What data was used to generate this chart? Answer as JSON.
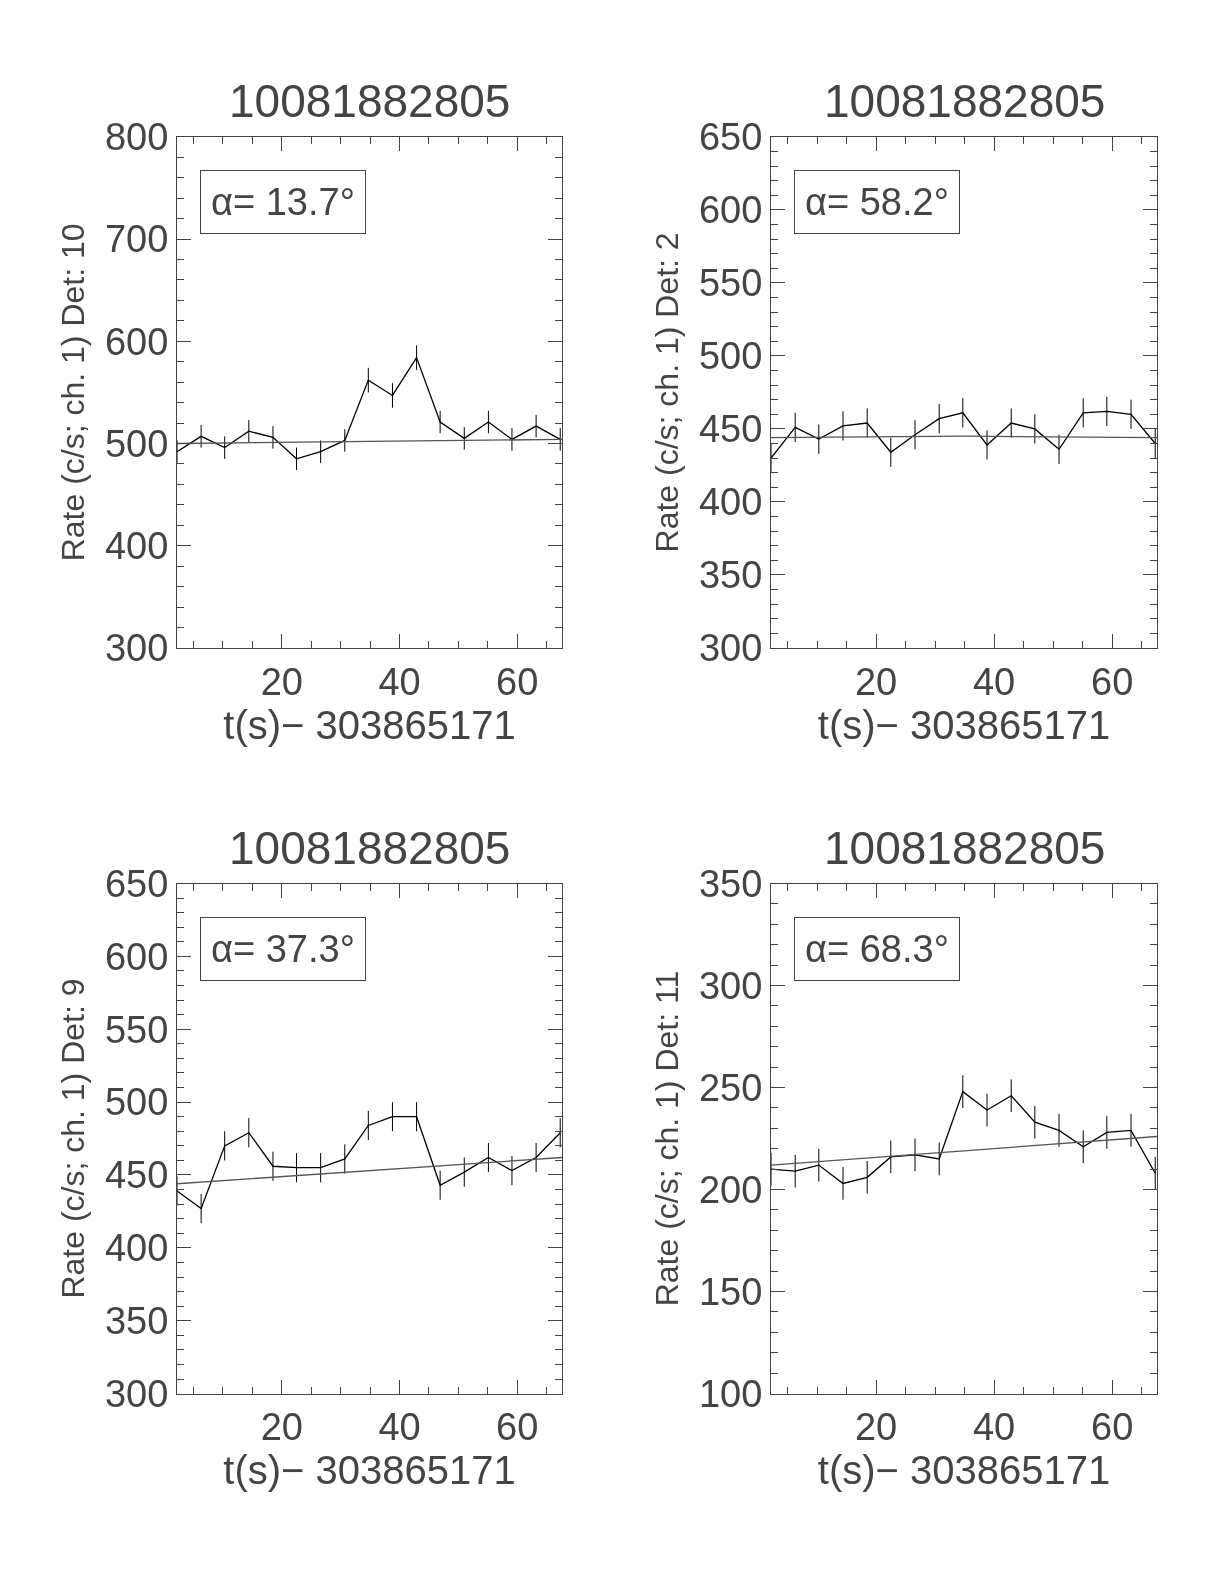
{
  "chart_data": [
    {
      "type": "line",
      "title": "10081882805",
      "xlabel": "t(s)− 303865171",
      "ylabel": "Rate (c/s; ch. 1) Det: 10",
      "annotations": [
        "α= 13.7°"
      ],
      "xlim": [
        2.2,
        67.6
      ],
      "xticks": [
        20,
        40,
        60,
        {
          "value": 5,
          "label": null
        },
        {
          "value": 10,
          "label": null
        },
        {
          "value": 15,
          "label": null
        },
        {
          "value": 25,
          "label": null
        },
        {
          "value": 30,
          "label": null
        },
        {
          "value": 35,
          "label": null
        },
        {
          "value": 45,
          "label": null
        },
        {
          "value": 50,
          "label": null
        },
        {
          "value": 55,
          "label": null
        },
        {
          "value": 65,
          "label": null
        }
      ],
      "ylim": [
        300,
        800
      ],
      "yticks": [
        300,
        400,
        500,
        600,
        700,
        800,
        {
          "value": 320,
          "label": null
        },
        {
          "value": 340,
          "label": null
        },
        {
          "value": 360,
          "label": null
        },
        {
          "value": 380,
          "label": null
        },
        {
          "value": 420,
          "label": null
        },
        {
          "value": 440,
          "label": null
        },
        {
          "value": 460,
          "label": null
        },
        {
          "value": 480,
          "label": null
        },
        {
          "value": 520,
          "label": null
        },
        {
          "value": 540,
          "label": null
        },
        {
          "value": 560,
          "label": null
        },
        {
          "value": 580,
          "label": null
        },
        {
          "value": 620,
          "label": null
        },
        {
          "value": 640,
          "label": null
        },
        {
          "value": 660,
          "label": null
        },
        {
          "value": 680,
          "label": null
        },
        {
          "value": 720,
          "label": null
        },
        {
          "value": 740,
          "label": null
        },
        {
          "value": 760,
          "label": null
        },
        {
          "value": 780,
          "label": null
        }
      ],
      "series": [
        {
          "color": "#000000",
          "x": [
            2.2,
            6.3,
            10.3,
            14.4,
            18.5,
            22.5,
            26.6,
            30.7,
            34.7,
            38.8,
            42.9,
            46.9,
            51.0,
            55.1,
            59.1,
            63.2,
            67.3
          ],
          "values": [
            492,
            507,
            496,
            512,
            506,
            485,
            492,
            503,
            562,
            547,
            584,
            521,
            505,
            521,
            504,
            517,
            504
          ],
          "errors": [
            11,
            11,
            11,
            11,
            11,
            11,
            11,
            11,
            12,
            12,
            12,
            11,
            11,
            11,
            11,
            11,
            11
          ]
        },
        {
          "color": "#555555",
          "x": [
            2.2,
            67.6
          ],
          "values": [
            500,
            504
          ]
        }
      ]
    },
    {
      "type": "line",
      "title": "10081882805",
      "xlabel": "t(s)− 303865171",
      "ylabel": "Rate (c/s; ch. 1) Det: 2",
      "annotations": [
        "α= 58.2°"
      ],
      "xlim": [
        2.2,
        67.6
      ],
      "xticks": [
        20,
        40,
        60,
        {
          "value": 5,
          "label": null
        },
        {
          "value": 10,
          "label": null
        },
        {
          "value": 15,
          "label": null
        },
        {
          "value": 25,
          "label": null
        },
        {
          "value": 30,
          "label": null
        },
        {
          "value": 35,
          "label": null
        },
        {
          "value": 45,
          "label": null
        },
        {
          "value": 50,
          "label": null
        },
        {
          "value": 55,
          "label": null
        },
        {
          "value": 65,
          "label": null
        }
      ],
      "ylim": [
        300,
        650
      ],
      "yticks": [
        300,
        350,
        400,
        450,
        500,
        550,
        600,
        650,
        {
          "value": 310,
          "label": null
        },
        {
          "value": 320,
          "label": null
        },
        {
          "value": 330,
          "label": null
        },
        {
          "value": 340,
          "label": null
        },
        {
          "value": 360,
          "label": null
        },
        {
          "value": 370,
          "label": null
        },
        {
          "value": 380,
          "label": null
        },
        {
          "value": 390,
          "label": null
        },
        {
          "value": 410,
          "label": null
        },
        {
          "value": 420,
          "label": null
        },
        {
          "value": 430,
          "label": null
        },
        {
          "value": 440,
          "label": null
        },
        {
          "value": 460,
          "label": null
        },
        {
          "value": 470,
          "label": null
        },
        {
          "value": 480,
          "label": null
        },
        {
          "value": 490,
          "label": null
        },
        {
          "value": 510,
          "label": null
        },
        {
          "value": 520,
          "label": null
        },
        {
          "value": 530,
          "label": null
        },
        {
          "value": 540,
          "label": null
        },
        {
          "value": 560,
          "label": null
        },
        {
          "value": 570,
          "label": null
        },
        {
          "value": 580,
          "label": null
        },
        {
          "value": 590,
          "label": null
        },
        {
          "value": 610,
          "label": null
        },
        {
          "value": 620,
          "label": null
        },
        {
          "value": 630,
          "label": null
        },
        {
          "value": 640,
          "label": null
        }
      ],
      "series": [
        {
          "color": "#000000",
          "x": [
            2.2,
            6.3,
            10.3,
            14.4,
            18.5,
            22.5,
            26.6,
            30.7,
            34.7,
            38.8,
            42.9,
            46.9,
            51.0,
            55.1,
            59.1,
            63.2,
            67.3
          ],
          "values": [
            430,
            451,
            443,
            452,
            454,
            434,
            446,
            457,
            461,
            439,
            454,
            450,
            436,
            461,
            462,
            460,
            440
          ],
          "errors": [
            10,
            10,
            10,
            10,
            10,
            10,
            10,
            10,
            10,
            10,
            10,
            10,
            10,
            10,
            10,
            10,
            10
          ]
        },
        {
          "color": "#555555",
          "x": [
            2.2,
            35,
            67.6
          ],
          "values": [
            444,
            445,
            444
          ]
        }
      ]
    },
    {
      "type": "line",
      "title": "10081882805",
      "xlabel": "t(s)− 303865171",
      "ylabel": "Rate (c/s; ch. 1) Det: 9",
      "annotations": [
        "α= 37.3°"
      ],
      "xlim": [
        2.2,
        67.6
      ],
      "xticks": [
        20,
        40,
        60,
        {
          "value": 5,
          "label": null
        },
        {
          "value": 10,
          "label": null
        },
        {
          "value": 15,
          "label": null
        },
        {
          "value": 25,
          "label": null
        },
        {
          "value": 30,
          "label": null
        },
        {
          "value": 35,
          "label": null
        },
        {
          "value": 45,
          "label": null
        },
        {
          "value": 50,
          "label": null
        },
        {
          "value": 55,
          "label": null
        },
        {
          "value": 65,
          "label": null
        }
      ],
      "ylim": [
        300,
        650
      ],
      "yticks": [
        300,
        350,
        400,
        450,
        500,
        550,
        600,
        650,
        {
          "value": 310,
          "label": null
        },
        {
          "value": 320,
          "label": null
        },
        {
          "value": 330,
          "label": null
        },
        {
          "value": 340,
          "label": null
        },
        {
          "value": 360,
          "label": null
        },
        {
          "value": 370,
          "label": null
        },
        {
          "value": 380,
          "label": null
        },
        {
          "value": 390,
          "label": null
        },
        {
          "value": 410,
          "label": null
        },
        {
          "value": 420,
          "label": null
        },
        {
          "value": 430,
          "label": null
        },
        {
          "value": 440,
          "label": null
        },
        {
          "value": 460,
          "label": null
        },
        {
          "value": 470,
          "label": null
        },
        {
          "value": 480,
          "label": null
        },
        {
          "value": 490,
          "label": null
        },
        {
          "value": 510,
          "label": null
        },
        {
          "value": 520,
          "label": null
        },
        {
          "value": 530,
          "label": null
        },
        {
          "value": 540,
          "label": null
        },
        {
          "value": 560,
          "label": null
        },
        {
          "value": 570,
          "label": null
        },
        {
          "value": 580,
          "label": null
        },
        {
          "value": 590,
          "label": null
        },
        {
          "value": 610,
          "label": null
        },
        {
          "value": 620,
          "label": null
        },
        {
          "value": 630,
          "label": null
        },
        {
          "value": 640,
          "label": null
        }
      ],
      "series": [
        {
          "color": "#000000",
          "x": [
            2.2,
            6.3,
            10.3,
            14.4,
            18.5,
            22.5,
            26.6,
            30.7,
            34.7,
            38.8,
            42.9,
            46.9,
            51.0,
            55.1,
            59.1,
            63.2,
            67.3
          ],
          "values": [
            439,
            427,
            470,
            479,
            456,
            455,
            455,
            461,
            484,
            490,
            490,
            443,
            452,
            462,
            453,
            462,
            479
          ],
          "errors": [
            10,
            10,
            10,
            10,
            10,
            10,
            10,
            10,
            10,
            10,
            10,
            10,
            10,
            10,
            10,
            10,
            10
          ]
        },
        {
          "color": "#555555",
          "x": [
            2.2,
            67.6
          ],
          "values": [
            444,
            462
          ]
        }
      ]
    },
    {
      "type": "line",
      "title": "10081882805",
      "xlabel": "t(s)− 303865171",
      "ylabel": "Rate (c/s; ch. 1) Det: 11",
      "annotations": [
        "α= 68.3°"
      ],
      "xlim": [
        2.2,
        67.6
      ],
      "xticks": [
        20,
        40,
        60,
        {
          "value": 5,
          "label": null
        },
        {
          "value": 10,
          "label": null
        },
        {
          "value": 15,
          "label": null
        },
        {
          "value": 25,
          "label": null
        },
        {
          "value": 30,
          "label": null
        },
        {
          "value": 35,
          "label": null
        },
        {
          "value": 45,
          "label": null
        },
        {
          "value": 50,
          "label": null
        },
        {
          "value": 55,
          "label": null
        },
        {
          "value": 65,
          "label": null
        }
      ],
      "ylim": [
        100,
        350
      ],
      "yticks": [
        100,
        150,
        200,
        250,
        300,
        350,
        {
          "value": 110,
          "label": null
        },
        {
          "value": 120,
          "label": null
        },
        {
          "value": 130,
          "label": null
        },
        {
          "value": 140,
          "label": null
        },
        {
          "value": 160,
          "label": null
        },
        {
          "value": 170,
          "label": null
        },
        {
          "value": 180,
          "label": null
        },
        {
          "value": 190,
          "label": null
        },
        {
          "value": 210,
          "label": null
        },
        {
          "value": 220,
          "label": null
        },
        {
          "value": 230,
          "label": null
        },
        {
          "value": 240,
          "label": null
        },
        {
          "value": 260,
          "label": null
        },
        {
          "value": 270,
          "label": null
        },
        {
          "value": 280,
          "label": null
        },
        {
          "value": 290,
          "label": null
        },
        {
          "value": 310,
          "label": null
        },
        {
          "value": 320,
          "label": null
        },
        {
          "value": 330,
          "label": null
        },
        {
          "value": 340,
          "label": null
        }
      ],
      "series": [
        {
          "color": "#000000",
          "x": [
            2.2,
            6.3,
            10.3,
            14.4,
            18.5,
            22.5,
            26.6,
            30.7,
            34.7,
            38.8,
            42.9,
            46.9,
            51.0,
            55.1,
            59.1,
            63.2,
            67.3
          ],
          "values": [
            210,
            209,
            212,
            203,
            206,
            216,
            217,
            215,
            248,
            239,
            246,
            233,
            229,
            221,
            228,
            229,
            208
          ],
          "errors": [
            8,
            8,
            8,
            8,
            8,
            8,
            8,
            8,
            8,
            8,
            8,
            8,
            8,
            8,
            8,
            8,
            8
          ]
        },
        {
          "color": "#555555",
          "x": [
            2.2,
            67.6
          ],
          "values": [
            212,
            226
          ]
        }
      ]
    }
  ]
}
